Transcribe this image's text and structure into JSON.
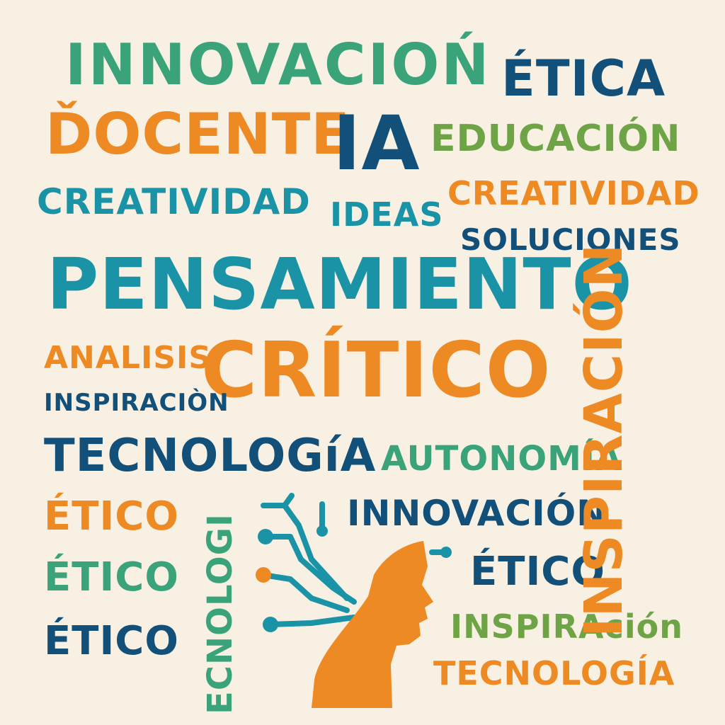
{
  "colors": {
    "background": "#f8f0e3",
    "green": "#3aa37a",
    "navy": "#12507a",
    "orange": "#ee8a24",
    "olive": "#6fa446",
    "teal": "#1b93a6"
  },
  "words": {
    "w01": "INNOVACIOŃ",
    "w02": "ÉTICA",
    "w03": "ĎOCENTE",
    "w04": "IA",
    "w05": "EDUCACIÓN",
    "w06": "CREATIVIDAD",
    "w07": "IDEAS",
    "w08": "CREATIVIDAD",
    "w09": "SOLUCIONES",
    "w10": "PENSAMIENTO",
    "w11": "ANALISIS",
    "w12": "CRÍTICO",
    "w13": "INSPIRACIÒN",
    "w14": "TECNOLOGíA",
    "w15": "AUTONOMÍA",
    "w16": "ÉTICO",
    "w17": "INNOVACIÓN",
    "w18": "ÉTICO",
    "w19": "ÉTICO",
    "w20": "ÉTICO",
    "w21": "INSPIRAción",
    "w22": "TECNOLOGÍA",
    "w23": "ECNOLOGI",
    "w24": "INSPIRACIÓN"
  },
  "icons": {
    "head": "head-profile-icon",
    "circuit": "circuit-lines-icon"
  }
}
